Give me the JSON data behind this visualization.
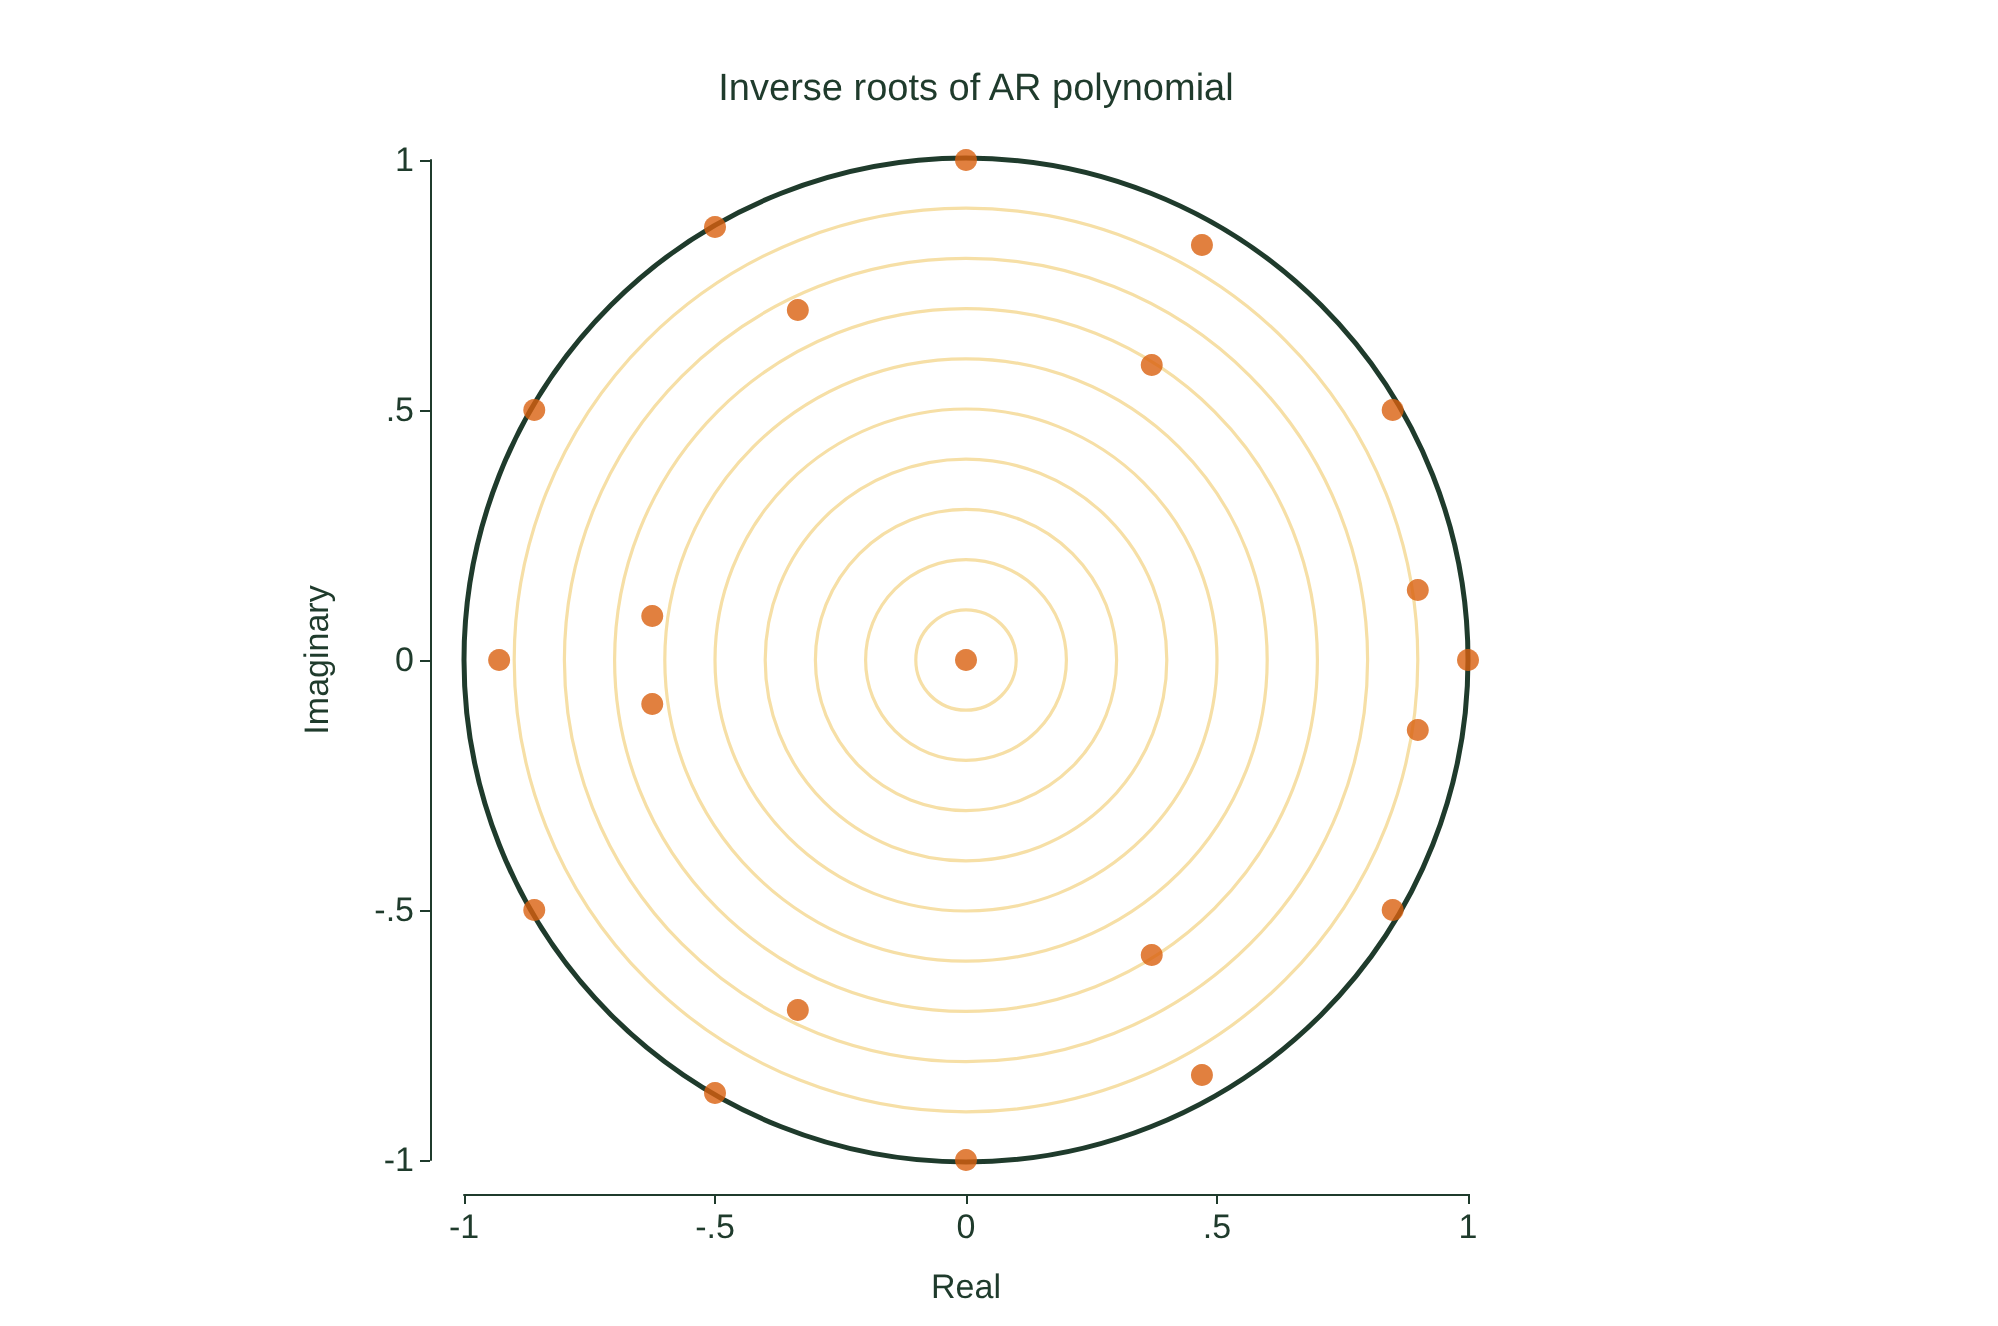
{
  "chart_data": {
    "type": "scatter",
    "title": "Inverse roots of AR polynomial",
    "xlabel": "Real",
    "ylabel": "Imaginary",
    "xlim": [
      -1,
      1
    ],
    "ylim": [
      -1,
      1
    ],
    "xticks": [
      {
        "value": -1,
        "label": "-1"
      },
      {
        "value": -0.5,
        "label": "-.5"
      },
      {
        "value": 0,
        "label": "0"
      },
      {
        "value": 0.5,
        "label": ".5"
      },
      {
        "value": 1,
        "label": "1"
      }
    ],
    "yticks": [
      {
        "value": -1,
        "label": "-1"
      },
      {
        "value": -0.5,
        "label": "-.5"
      },
      {
        "value": 0,
        "label": "0"
      },
      {
        "value": 0.5,
        "label": ".5"
      },
      {
        "value": 1,
        "label": "1"
      }
    ],
    "grid": false,
    "marker": "circle",
    "series": [
      {
        "color": "#d9600f",
        "x": [
          0,
          -0.5,
          0.47,
          -0.335,
          0.37,
          -0.86,
          0.85,
          0.9,
          -0.625,
          -0.93,
          0,
          1,
          -0.625,
          0.9,
          -0.86,
          0.85,
          0.37,
          -0.335,
          -0.5,
          0.47,
          0
        ],
        "values": [
          1,
          0.866,
          0.83,
          0.7,
          0.59,
          0.5,
          0.5,
          0.14,
          0.088,
          0,
          0,
          0,
          -0.088,
          -0.14,
          -0.5,
          -0.5,
          -0.59,
          -0.7,
          -0.866,
          -0.83,
          -1
        ]
      }
    ]
  }
}
